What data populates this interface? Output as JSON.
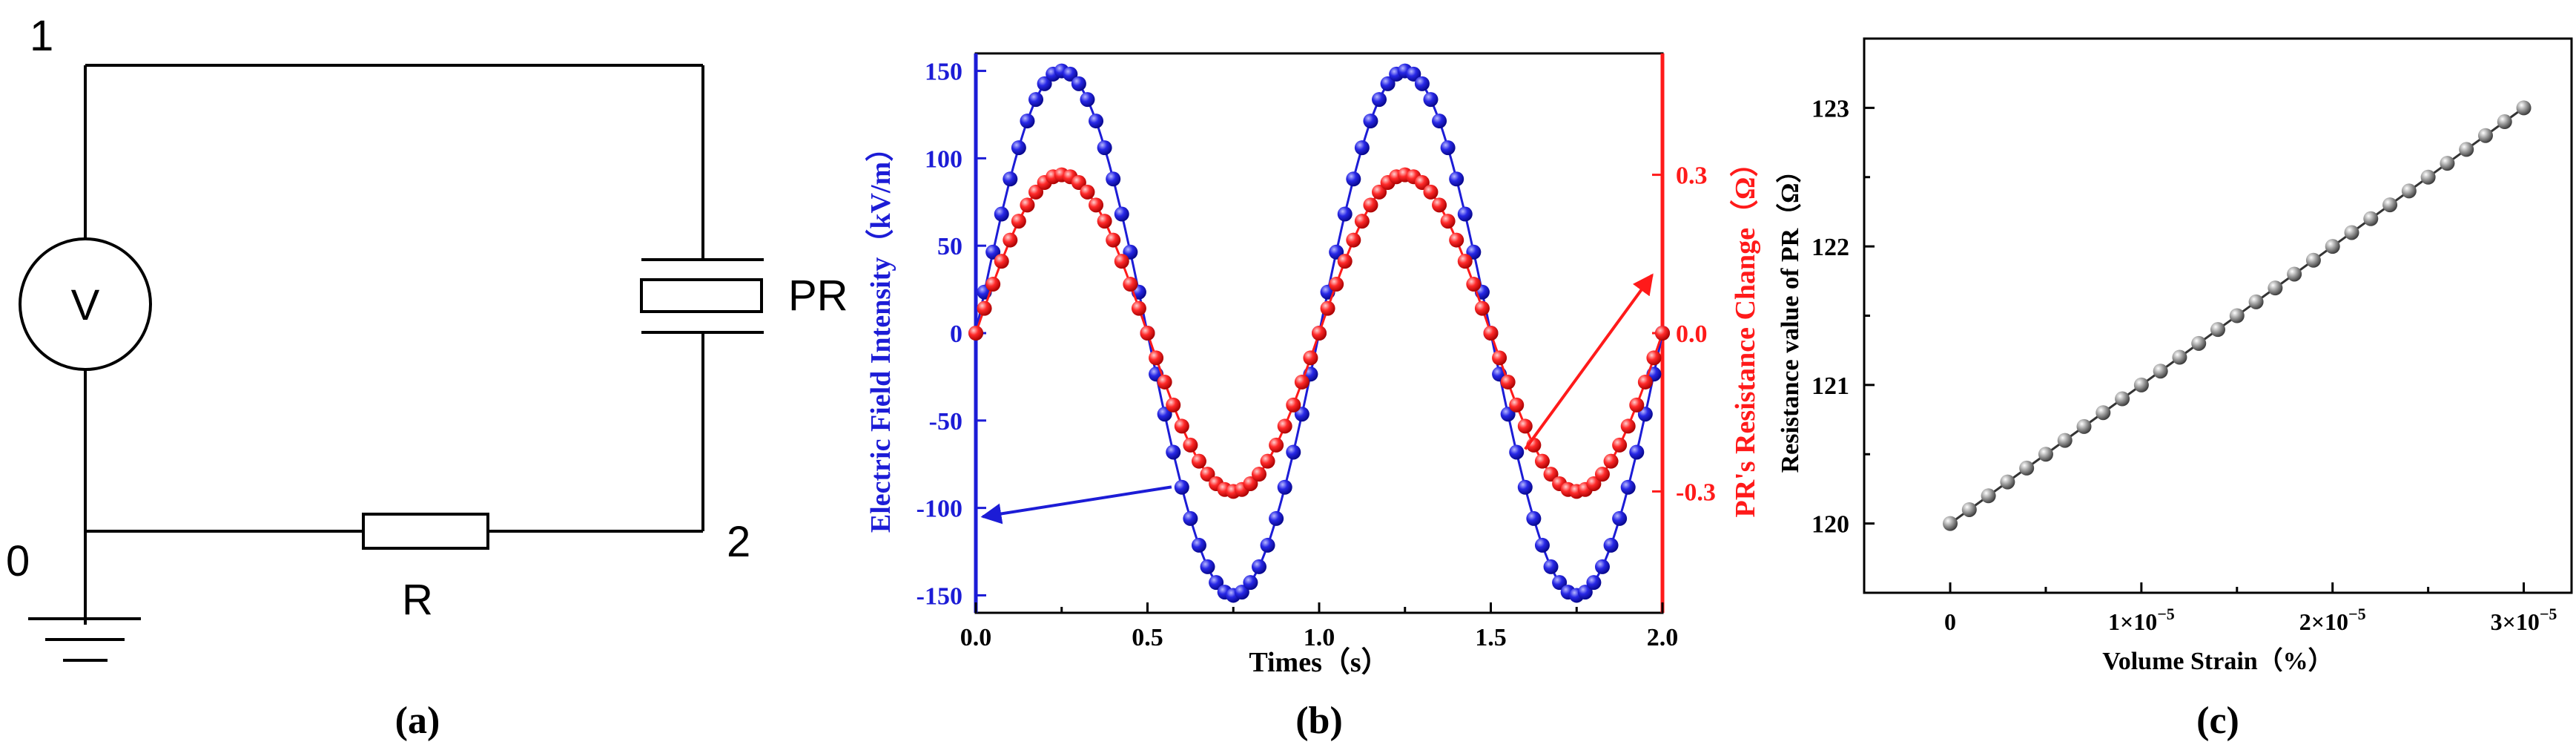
{
  "colors": {
    "black": "#000000",
    "blue": "#1c1cd6",
    "red": "#ff1a1a",
    "gray_marker": "#8a8a8a"
  },
  "panel_a": {
    "caption": "(a)",
    "node_labels": {
      "n1": "1",
      "n0": "0",
      "n2": "2"
    },
    "voltage_source_label": "V",
    "resistor_label": "R",
    "pr_label": "PR"
  },
  "panel_b": {
    "caption": "(b)",
    "chart_data": {
      "type": "line",
      "xlabel": "Times（s）",
      "ylabel_left": "Electric Field Intensity（kV/m）",
      "ylabel_right": "PR's Resistance Change（Ω）",
      "xlim": [
        0.0,
        2.0
      ],
      "ylim_left": [
        -160,
        160
      ],
      "ylim_right": [
        -0.53,
        0.53
      ],
      "x_ticks": [
        "0.0",
        "0.5",
        "1.0",
        "1.5",
        "2.0"
      ],
      "y_ticks_left": [
        "150",
        "100",
        "50",
        "0",
        "-50",
        "-100",
        "-150"
      ],
      "y_ticks_right": [
        "0.3",
        "0.0",
        "-0.3"
      ],
      "series": [
        {
          "name": "Electric Field Intensity",
          "axis": "left",
          "amplitude": 150,
          "frequency_hz": 1,
          "x_start": 0,
          "x_end": 2,
          "x_step": 0.025
        },
        {
          "name": "PR's Resistance Change",
          "axis": "right",
          "amplitude": 0.3,
          "frequency_hz": 1,
          "x_start": 0,
          "x_end": 2,
          "x_step": 0.025
        }
      ],
      "annotations": [
        {
          "label": "arrow-to-left-axis",
          "from": [
            0.57,
            -88
          ],
          "to": [
            0.02,
            -105
          ]
        },
        {
          "label": "arrow-to-right-axis",
          "from": [
            1.6,
            -0.22
          ],
          "to": [
            1.97,
            0.11
          ]
        }
      ]
    }
  },
  "panel_c": {
    "caption": "(c)",
    "chart_data": {
      "type": "scatter",
      "xlabel": "Volume Strain（%）",
      "ylabel": "Resistance value of PR（Ω）",
      "xlim": [
        -4.5e-06,
        3.25e-05
      ],
      "ylim": [
        119.5,
        123.5
      ],
      "x_tick_values": [
        0,
        1e-05,
        2e-05,
        3e-05
      ],
      "x_ticks": [
        {
          "base": "0",
          "exp": ""
        },
        {
          "base": "1×10",
          "exp": "−5"
        },
        {
          "base": "2×10",
          "exp": "−5"
        },
        {
          "base": "3×10",
          "exp": "−5"
        }
      ],
      "y_tick_values": [
        120,
        121,
        122,
        123
      ],
      "y_ticks": [
        "120",
        "121",
        "122",
        "123"
      ],
      "series": [
        {
          "name": "Resistance value of PR",
          "x_start": 0,
          "x_end": 3e-05,
          "y_start": 120,
          "y_end": 123,
          "points": 31
        }
      ]
    }
  }
}
